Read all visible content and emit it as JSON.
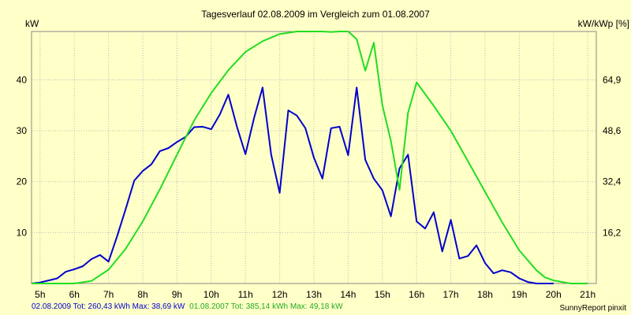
{
  "chart_data": {
    "type": "line",
    "title": "Tagesverlauf 02.08.2009 im Vergleich zum 01.08.2007",
    "ylabel": "kW",
    "ylabel_right": "kW/kWp [%]",
    "x_tick_labels": [
      "5h",
      "6h",
      "7h",
      "8h",
      "9h",
      "10h",
      "11h",
      "12h",
      "13h",
      "14h",
      "15h",
      "16h",
      "17h",
      "18h",
      "19h",
      "20h",
      "21h"
    ],
    "x_ticks": [
      5,
      6,
      7,
      8,
      9,
      10,
      11,
      12,
      13,
      14,
      15,
      16,
      17,
      18,
      19,
      20,
      21
    ],
    "xlim": [
      4.75,
      21.25
    ],
    "ylim": [
      0,
      49.5
    ],
    "y_ticks": [
      10,
      20,
      30,
      40
    ],
    "y_tick_labels": [
      "10",
      "20",
      "30",
      "40"
    ],
    "y2_ticks": [
      10,
      20,
      30,
      40
    ],
    "y2_tick_labels": [
      "16,2",
      "32,4",
      "48,6",
      "64,9"
    ],
    "grid": true,
    "series": [
      {
        "color": "#0000cc",
        "x": [
          4.75,
          5.0,
          5.25,
          5.5,
          5.75,
          6.0,
          6.25,
          6.5,
          6.75,
          7.0,
          7.25,
          7.5,
          7.75,
          8.0,
          8.25,
          8.5,
          8.75,
          9.0,
          9.25,
          9.5,
          9.75,
          10.0,
          10.25,
          10.5,
          10.75,
          11.0,
          11.25,
          11.5,
          11.75,
          12.0,
          12.25,
          12.5,
          12.75,
          13.0,
          13.25,
          13.5,
          13.75,
          14.0,
          14.25,
          14.5,
          14.75,
          15.0,
          15.25,
          15.5,
          15.75,
          16.0,
          16.25,
          16.5,
          16.75,
          17.0,
          17.25,
          17.5,
          17.75,
          18.0,
          18.25,
          18.5,
          18.75,
          19.0,
          19.25,
          19.5,
          19.75,
          20.0
        ],
        "y": [
          0.0,
          0.2,
          0.6,
          1.0,
          2.3,
          2.8,
          3.4,
          4.8,
          5.6,
          4.3,
          9.3,
          14.6,
          20.2,
          22.1,
          23.4,
          26.0,
          26.6,
          27.8,
          28.8,
          30.7,
          30.8,
          30.3,
          33.2,
          37.1,
          30.8,
          25.4,
          32.5,
          38.5,
          25.3,
          17.8,
          34.0,
          33.0,
          30.5,
          24.7,
          20.6,
          30.5,
          30.8,
          25.2,
          38.5,
          24.3,
          20.6,
          18.3,
          13.2,
          22.6,
          25.3,
          12.2,
          10.8,
          14.0,
          6.3,
          12.5,
          4.9,
          5.4,
          7.5,
          4.0,
          2.0,
          2.6,
          2.2,
          1.0,
          0.3,
          0.0,
          0.0,
          0.0
        ]
      },
      {
        "color": "#22dd22",
        "x": [
          4.75,
          5.0,
          5.5,
          6.0,
          6.5,
          7.0,
          7.5,
          8.0,
          8.5,
          9.0,
          9.5,
          10.0,
          10.5,
          11.0,
          11.5,
          12.0,
          12.5,
          13.0,
          13.25,
          13.5,
          13.75,
          14.0,
          14.25,
          14.5,
          14.75,
          15.0,
          15.25,
          15.5,
          15.75,
          16.0,
          16.5,
          17.0,
          17.5,
          18.0,
          18.5,
          19.0,
          19.5,
          19.75,
          20.0,
          20.5,
          21.0
        ],
        "y": [
          0.0,
          0.0,
          0.0,
          0.0,
          0.5,
          2.7,
          6.8,
          12.2,
          18.5,
          25.3,
          32.0,
          37.4,
          41.9,
          45.5,
          47.6,
          49.0,
          49.5,
          49.5,
          49.5,
          49.4,
          49.5,
          49.5,
          48.0,
          41.8,
          47.3,
          35.0,
          28.0,
          18.4,
          33.5,
          39.5,
          34.9,
          30.0,
          24.0,
          18.0,
          12.0,
          6.5,
          2.6,
          1.2,
          0.6,
          0.0,
          0.0
        ]
      }
    ]
  },
  "footer": {
    "series1_summary": "02.08.2009 Tot: 260,43 kWh Max: 38,69 kW",
    "series2_summary": "01.08.2007 Tot: 385,14 kWh Max: 49,18 kW",
    "credit": "SunnyReport pinxit"
  }
}
